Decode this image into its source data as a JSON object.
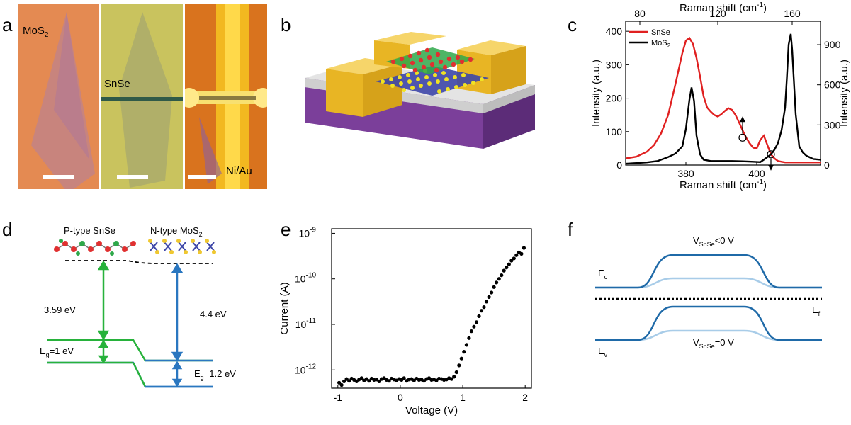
{
  "panels": {
    "a": "a",
    "b": "b",
    "c": "c",
    "d": "d",
    "e": "e",
    "f": "f"
  },
  "panel_a": {
    "images": [
      {
        "label": "MoS",
        "sub": "2",
        "bg": "#e48a52"
      },
      {
        "label": "SnSe",
        "sub": "",
        "bg": "#c9c35e"
      },
      {
        "label": "Ni/Au",
        "sub": "",
        "bg": "#d9731e"
      }
    ]
  },
  "chart_data": [
    {
      "type": "line",
      "panel": "c",
      "xlabel_bottom": "Raman shift (cm",
      "xlabel_bottom_sup": "-1",
      "xlabel_bottom_tail": ")",
      "xlabel_top": "Raman shift (cm",
      "xlabel_top_sup": "-1",
      "xlabel_top_tail": ")",
      "ylabel_left": "Intensity (a.u.)",
      "ylabel_right": "Intensity (a.u.)",
      "bottom_ticks": [
        "380",
        "400"
      ],
      "top_ticks": [
        "80",
        "120",
        "160"
      ],
      "left_ticks": [
        "0",
        "100",
        "200",
        "300",
        "400"
      ],
      "right_ticks": [
        "0",
        "300",
        "600",
        "900"
      ],
      "xlim": [
        363,
        418
      ],
      "ylim_left": [
        0,
        430
      ],
      "ylim_right": [
        0,
        1075
      ],
      "series": [
        {
          "name": "SnSe",
          "sub": "",
          "color": "#e02020",
          "axis": "left",
          "x": [
            363,
            366,
            369,
            371,
            373,
            375,
            377,
            379,
            380,
            381,
            382,
            383,
            384,
            385,
            386,
            387,
            388,
            389,
            390,
            391,
            392,
            393,
            394,
            395,
            396,
            397,
            398,
            399,
            400,
            401,
            402,
            403,
            404,
            405,
            406,
            407,
            408,
            409,
            410,
            412,
            414,
            416,
            418
          ],
          "y": [
            20,
            25,
            40,
            60,
            95,
            150,
            240,
            335,
            372,
            380,
            362,
            320,
            265,
            205,
            172,
            160,
            150,
            145,
            152,
            162,
            170,
            165,
            150,
            128,
            104,
            82,
            65,
            52,
            50,
            75,
            88,
            60,
            32,
            20,
            12,
            10,
            8,
            8,
            8,
            8,
            8,
            8,
            8
          ]
        },
        {
          "name": "MoS",
          "sub": "2",
          "color": "#000000",
          "axis": "right",
          "x": [
            363,
            366,
            369,
            372,
            375,
            377,
            379,
            380,
            381,
            381.6,
            382.3,
            383,
            384,
            385,
            387,
            390,
            393,
            396,
            399,
            401,
            402,
            403,
            404,
            405,
            406,
            407,
            408,
            408.5,
            409,
            409.6,
            410,
            411,
            412,
            413,
            414,
            416,
            418
          ],
          "y": [
            10,
            15,
            20,
            30,
            60,
            85,
            140,
            270,
            490,
            580,
            480,
            220,
            80,
            40,
            30,
            30,
            30,
            28,
            25,
            22,
            40,
            60,
            80,
            115,
            165,
            260,
            430,
            650,
            900,
            980,
            860,
            380,
            140,
            95,
            70,
            45,
            40
          ]
        }
      ]
    },
    {
      "type": "scatter",
      "panel": "e",
      "xlabel": "Voltage (V)",
      "ylabel": "Current (A)",
      "xticks": [
        "-1",
        "0",
        "1",
        "2"
      ],
      "yticks": [
        {
          "base": "10",
          "exp": "-12"
        },
        {
          "base": "10",
          "exp": "-11"
        },
        {
          "base": "10",
          "exp": "-10"
        },
        {
          "base": "10",
          "exp": "-9"
        }
      ],
      "xlim": [
        -1.1,
        2.1
      ],
      "ylim_log10": [
        -12.4,
        -8.9
      ],
      "x": [
        -0.98,
        -0.94,
        -0.9,
        -0.86,
        -0.82,
        -0.78,
        -0.74,
        -0.7,
        -0.66,
        -0.62,
        -0.58,
        -0.54,
        -0.5,
        -0.46,
        -0.42,
        -0.38,
        -0.34,
        -0.3,
        -0.26,
        -0.22,
        -0.18,
        -0.14,
        -0.1,
        -0.06,
        -0.02,
        0.02,
        0.06,
        0.1,
        0.14,
        0.18,
        0.22,
        0.26,
        0.3,
        0.34,
        0.38,
        0.42,
        0.46,
        0.5,
        0.54,
        0.58,
        0.62,
        0.66,
        0.7,
        0.74,
        0.78,
        0.82,
        0.86,
        0.9,
        0.94,
        0.98,
        1.02,
        1.06,
        1.1,
        1.14,
        1.18,
        1.22,
        1.26,
        1.3,
        1.34,
        1.38,
        1.42,
        1.46,
        1.5,
        1.54,
        1.58,
        1.62,
        1.66,
        1.7,
        1.74,
        1.78,
        1.82,
        1.86,
        1.9,
        1.94,
        1.98
      ],
      "y_log10": [
        -12.28,
        -12.33,
        -12.25,
        -12.2,
        -12.24,
        -12.19,
        -12.22,
        -12.25,
        -12.21,
        -12.18,
        -12.23,
        -12.2,
        -12.24,
        -12.19,
        -12.22,
        -12.21,
        -12.25,
        -12.2,
        -12.18,
        -12.22,
        -12.24,
        -12.19,
        -12.21,
        -12.23,
        -12.2,
        -12.22,
        -12.18,
        -12.24,
        -12.21,
        -12.2,
        -12.23,
        -12.19,
        -12.22,
        -12.21,
        -12.24,
        -12.2,
        -12.18,
        -12.22,
        -12.21,
        -12.23,
        -12.19,
        -12.2,
        -12.22,
        -12.21,
        -12.18,
        -12.2,
        -12.15,
        -12.05,
        -11.9,
        -11.75,
        -11.6,
        -11.45,
        -11.3,
        -11.15,
        -11.05,
        -10.95,
        -10.82,
        -10.7,
        -10.62,
        -10.5,
        -10.4,
        -10.3,
        -10.18,
        -10.08,
        -10.0,
        -9.92,
        -9.82,
        -9.75,
        -9.68,
        -9.6,
        -9.55,
        -9.48,
        -9.42,
        -9.45,
        -9.32
      ]
    }
  ],
  "panel_d": {
    "ptype": "P-type SnSe",
    "ntype": "N-type MoS",
    "ntype_sub": "2",
    "chi_snse": "3.59 eV",
    "chi_mos2": "4.4 eV",
    "eg_snse_pre": "E",
    "eg_snse_sub": "g",
    "eg_snse_post": "=1 eV",
    "eg_mos2_pre": "E",
    "eg_mos2_sub": "g",
    "eg_mos2_post": "=1.2 eV",
    "colors": {
      "snse": "#27b23b",
      "mos2": "#2a77c0"
    }
  },
  "panel_f": {
    "ec_pre": "E",
    "ec_sub": "c",
    "ev_pre": "E",
    "ev_sub": "v",
    "ef_pre": "E",
    "ef_sub": "f",
    "top_pre": "V",
    "top_sub": "SnSe",
    "top_post": "<0 V",
    "bot_pre": "V",
    "bot_sub": "SnSe",
    "bot_post": "=0 V",
    "colors": {
      "dark": "#1f6aa8",
      "light": "#a8cce8"
    }
  }
}
